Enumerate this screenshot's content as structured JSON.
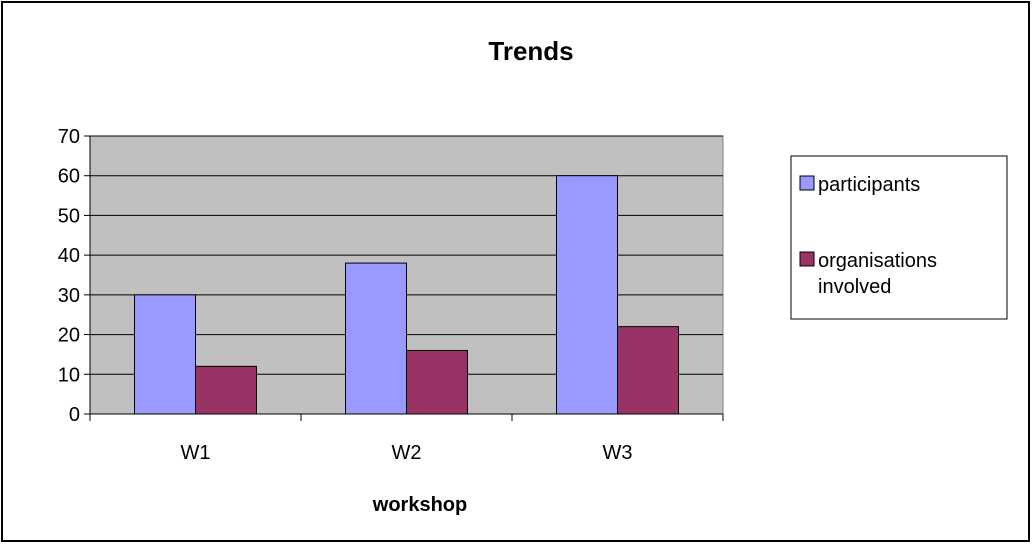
{
  "chart_data": {
    "type": "bar",
    "title": "Trends",
    "xlabel": "workshop",
    "ylabel": "",
    "categories": [
      "W1",
      "W2",
      "W3"
    ],
    "series": [
      {
        "name": "participants",
        "values": [
          30,
          38,
          60
        ],
        "color": "#9999ff"
      },
      {
        "name": "organisations involved",
        "values": [
          12,
          16,
          22
        ],
        "color": "#993366"
      }
    ],
    "yticks": [
      0,
      10,
      20,
      30,
      40,
      50,
      60,
      70
    ],
    "ylim": [
      0,
      70
    ],
    "grid": true,
    "legend": "right",
    "plot_background": "#c0c0c0"
  }
}
